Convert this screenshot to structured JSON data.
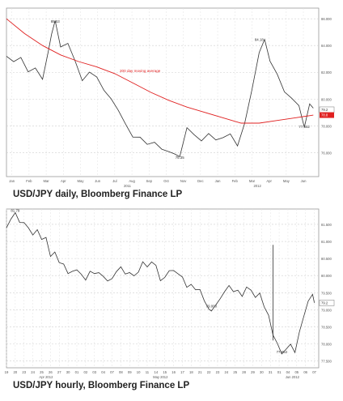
{
  "captions": {
    "daily": "USD/JPY daily, Bloomberg Finance LP",
    "hourly": "USD/JPY hourly, Bloomberg Finance LP"
  },
  "chart_data": [
    {
      "type": "line",
      "subtitle": "USD/JPY daily, Bloomberg Finance LP",
      "ylim": [
        74.2,
        86.8
      ],
      "yticks": [
        "86.000",
        "84.000",
        "82.000",
        "80.000",
        "78.000",
        "76.000"
      ],
      "ytick_values": [
        86,
        84,
        82,
        80,
        78,
        76
      ],
      "x_labels": [
        "Jan",
        "Feb",
        "Mar",
        "Apr",
        "May",
        "Jun",
        "Jul",
        "Aug",
        "Sep",
        "Oct",
        "Nov",
        "Dec",
        "Jan",
        "Feb",
        "Mar",
        "Apr",
        "May",
        "Jun"
      ],
      "year_labels": [
        "2011",
        "2012"
      ],
      "last_price_label": "79.2",
      "ma_label_value": "78.8",
      "ma_annotation": "200 day moving average",
      "annotations": [
        {
          "text": "85.53",
          "x": 2.7,
          "y": 85.53
        },
        {
          "text": "75.35",
          "x": 9.6,
          "y": 75.35
        },
        {
          "text": "84.18",
          "x": 14.0,
          "y": 84.18
        },
        {
          "text": "77.652",
          "x": 16.5,
          "y": 77.65
        }
      ],
      "series": [
        {
          "name": "USD/JPY",
          "color": "#333333",
          "x": [
            0.0,
            0.4,
            0.8,
            1.2,
            1.6,
            2.0,
            2.3,
            2.5,
            2.7,
            3.0,
            3.4,
            3.8,
            4.2,
            4.6,
            5.0,
            5.4,
            5.8,
            6.2,
            6.6,
            7.0,
            7.4,
            7.8,
            8.2,
            8.6,
            9.0,
            9.3,
            9.6,
            10.0,
            10.4,
            10.8,
            11.2,
            11.6,
            12.0,
            12.4,
            12.8,
            13.2,
            13.6,
            14.0,
            14.3,
            14.6,
            15.0,
            15.4,
            15.8,
            16.2,
            16.5,
            16.8,
            17.0
          ],
          "y": [
            83.2,
            82.5,
            82.8,
            82.0,
            82.6,
            81.8,
            83.5,
            84.6,
            85.53,
            83.8,
            84.4,
            83.2,
            81.5,
            81.8,
            81.3,
            80.5,
            80.2,
            79.5,
            78.3,
            77.0,
            76.8,
            76.4,
            76.9,
            76.6,
            76.3,
            75.8,
            75.35,
            77.6,
            77.4,
            77.2,
            77.7,
            76.9,
            76.8,
            77.1,
            76.5,
            78.5,
            81.0,
            83.5,
            84.18,
            82.5,
            81.8,
            80.8,
            80.4,
            79.6,
            77.65,
            79.3,
            79.2
          ]
        },
        {
          "name": "200 day moving average",
          "color": "#e02020",
          "x": [
            0.0,
            1.0,
            2.0,
            3.0,
            4.0,
            5.0,
            6.0,
            7.0,
            8.0,
            9.0,
            10.0,
            11.0,
            12.0,
            13.0,
            14.0,
            15.0,
            16.0,
            17.0
          ],
          "y": [
            86.0,
            84.9,
            84.0,
            83.3,
            82.8,
            82.4,
            81.9,
            81.2,
            80.5,
            79.9,
            79.4,
            79.0,
            78.6,
            78.2,
            78.2,
            78.4,
            78.6,
            78.8
          ]
        }
      ]
    },
    {
      "type": "line",
      "subtitle": "USD/JPY hourly, Bloomberg Finance LP",
      "ylim": [
        77.3,
        81.95
      ],
      "yticks": [
        "81.500",
        "81.000",
        "80.500",
        "80.000",
        "79.500",
        "79.000",
        "78.500",
        "78.000",
        "77.500"
      ],
      "ytick_values": [
        81.5,
        81.0,
        80.5,
        80.0,
        79.5,
        79.0,
        78.5,
        78.0,
        77.5
      ],
      "x_labels": [
        "19",
        "20",
        "23",
        "24",
        "25",
        "26",
        "27",
        "30",
        "01",
        "02",
        "03",
        "04",
        "07",
        "08",
        "09",
        "10",
        "11",
        "14",
        "15",
        "16",
        "17",
        "18",
        "21",
        "22",
        "23",
        "24",
        "25",
        "28",
        "29",
        "30",
        "31",
        "01",
        "04",
        "05",
        "06",
        "07"
      ],
      "month_labels": [
        "Apr 2012",
        "May 2012",
        "Jun 2012"
      ],
      "last_price_label": "79.2",
      "annotations": [
        {
          "text": "81.79",
          "x": 1.0,
          "y": 81.79
        },
        {
          "text": "79.000",
          "x": 23.3,
          "y": 79.0
        },
        {
          "text": "77.652",
          "x": 31.3,
          "y": 77.65
        }
      ],
      "series": [
        {
          "name": "USD/JPY",
          "color": "#333333",
          "x": [
            0,
            0.5,
            1.0,
            1.5,
            2.0,
            2.5,
            3.0,
            3.5,
            4.0,
            4.5,
            5.0,
            5.5,
            6.0,
            6.5,
            7.0,
            7.5,
            8.0,
            8.5,
            9.0,
            9.5,
            10.0,
            10.5,
            11.0,
            11.5,
            12.0,
            12.5,
            13.0,
            13.5,
            14.0,
            14.5,
            15.0,
            15.5,
            16.0,
            16.5,
            17.0,
            17.5,
            18.0,
            18.5,
            19.0,
            19.5,
            20.0,
            20.5,
            21.0,
            21.5,
            22.0,
            22.5,
            23.0,
            23.3,
            23.8,
            24.3,
            24.8,
            25.3,
            25.8,
            26.3,
            26.8,
            27.3,
            27.8,
            28.3,
            28.8,
            29.3,
            29.8,
            30.3,
            30.8,
            31.3,
            31.8,
            32.3,
            32.8,
            33.3,
            33.8,
            34.3,
            34.8,
            35.0
          ],
          "y": [
            81.4,
            81.6,
            81.79,
            81.55,
            81.6,
            81.45,
            81.2,
            81.3,
            81.0,
            81.1,
            80.6,
            80.75,
            80.4,
            80.3,
            80.0,
            80.1,
            80.2,
            80.1,
            79.9,
            80.1,
            80.0,
            80.05,
            80.0,
            79.9,
            79.95,
            80.1,
            80.2,
            80.0,
            80.1,
            80.05,
            80.15,
            80.4,
            80.2,
            80.35,
            80.3,
            79.9,
            80.0,
            80.15,
            80.1,
            80.0,
            79.95,
            79.7,
            79.8,
            79.6,
            79.55,
            79.2,
            79.0,
            79.0,
            79.2,
            79.35,
            79.5,
            79.65,
            79.5,
            79.6,
            79.45,
            79.7,
            79.55,
            79.3,
            79.45,
            79.1,
            78.9,
            78.3,
            78.0,
            77.65,
            77.8,
            78.0,
            77.8,
            78.4,
            78.8,
            79.2,
            79.4,
            79.2
          ]
        }
      ]
    }
  ]
}
